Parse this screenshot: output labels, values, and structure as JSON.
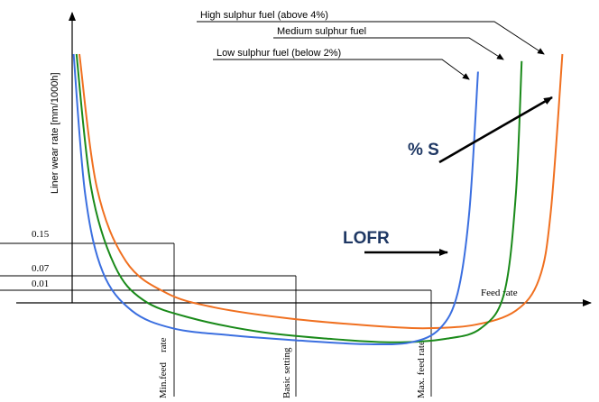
{
  "chart_data": {
    "type": "line",
    "title": "",
    "xlabel": "Feed rate",
    "ylabel": "Liner wear rate [mm/1000h]",
    "y_ticks": [
      "0.15",
      "0.07",
      "0.01"
    ],
    "x_markers": [
      "Min.feed    rate",
      "Basic setting",
      "Max. feed rate"
    ],
    "annotations": {
      "sulphur": "% S",
      "lofr": "LOFR"
    },
    "series": [
      {
        "name": "High sulphur fuel (above 4%)",
        "color": "#f07020",
        "points": [
          [
            0.09,
            1.0
          ],
          [
            0.12,
            0.62
          ],
          [
            0.17,
            0.41
          ],
          [
            0.24,
            0.32
          ],
          [
            0.32,
            0.28
          ],
          [
            0.44,
            0.25
          ],
          [
            0.57,
            0.23
          ],
          [
            0.68,
            0.22
          ],
          [
            0.77,
            0.23
          ],
          [
            0.84,
            0.27
          ],
          [
            0.88,
            0.36
          ],
          [
            0.9,
            0.55
          ],
          [
            0.92,
            1.0
          ]
        ]
      },
      {
        "name": "Medium sulphur fuel",
        "color": "#1a8a1a",
        "points": [
          [
            0.085,
            1.0
          ],
          [
            0.11,
            0.62
          ],
          [
            0.15,
            0.4
          ],
          [
            0.2,
            0.3
          ],
          [
            0.28,
            0.25
          ],
          [
            0.4,
            0.21
          ],
          [
            0.52,
            0.19
          ],
          [
            0.63,
            0.18
          ],
          [
            0.72,
            0.19
          ],
          [
            0.78,
            0.22
          ],
          [
            0.82,
            0.32
          ],
          [
            0.84,
            0.6
          ],
          [
            0.85,
            0.98
          ]
        ]
      },
      {
        "name": "Low sulphur fuel (below 2%)",
        "color": "#3b6fe0",
        "points": [
          [
            0.08,
            1.0
          ],
          [
            0.1,
            0.6
          ],
          [
            0.13,
            0.38
          ],
          [
            0.18,
            0.27
          ],
          [
            0.25,
            0.22
          ],
          [
            0.35,
            0.2
          ],
          [
            0.47,
            0.185
          ],
          [
            0.58,
            0.175
          ],
          [
            0.66,
            0.18
          ],
          [
            0.71,
            0.22
          ],
          [
            0.74,
            0.32
          ],
          [
            0.76,
            0.55
          ],
          [
            0.775,
            0.95
          ]
        ]
      }
    ]
  }
}
